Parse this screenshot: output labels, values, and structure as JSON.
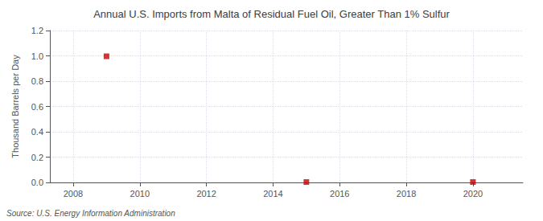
{
  "chart_data": {
    "type": "scatter",
    "title": "Annual U.S. Imports from Malta of Residual Fuel Oil, Greater Than 1% Sulfur",
    "ylabel": "Thousand Barrels per Day",
    "source": "Source: U.S. Energy Information Administration",
    "x": [
      2009,
      2015,
      2020
    ],
    "values": [
      0.9966,
      0.003,
      0.003
    ],
    "color": "#cc0000",
    "marker": "square",
    "xlim": [
      2007.3,
      2021.5
    ],
    "ylim": [
      0.0,
      1.2
    ],
    "xticks": [
      2008,
      2010,
      2012,
      2014,
      2016,
      2018,
      2020
    ],
    "yticks": [
      {
        "value": 0.0,
        "label": "0.0"
      },
      {
        "value": 0.2,
        "label": "0.2"
      },
      {
        "value": 0.4,
        "label": "0.4"
      },
      {
        "value": 0.6,
        "label": "0.6"
      },
      {
        "value": 0.8,
        "label": "0.8"
      },
      {
        "value": 1.0,
        "label": "1.0"
      },
      {
        "value": 1.2,
        "label": "1.2"
      }
    ],
    "grid": true
  }
}
